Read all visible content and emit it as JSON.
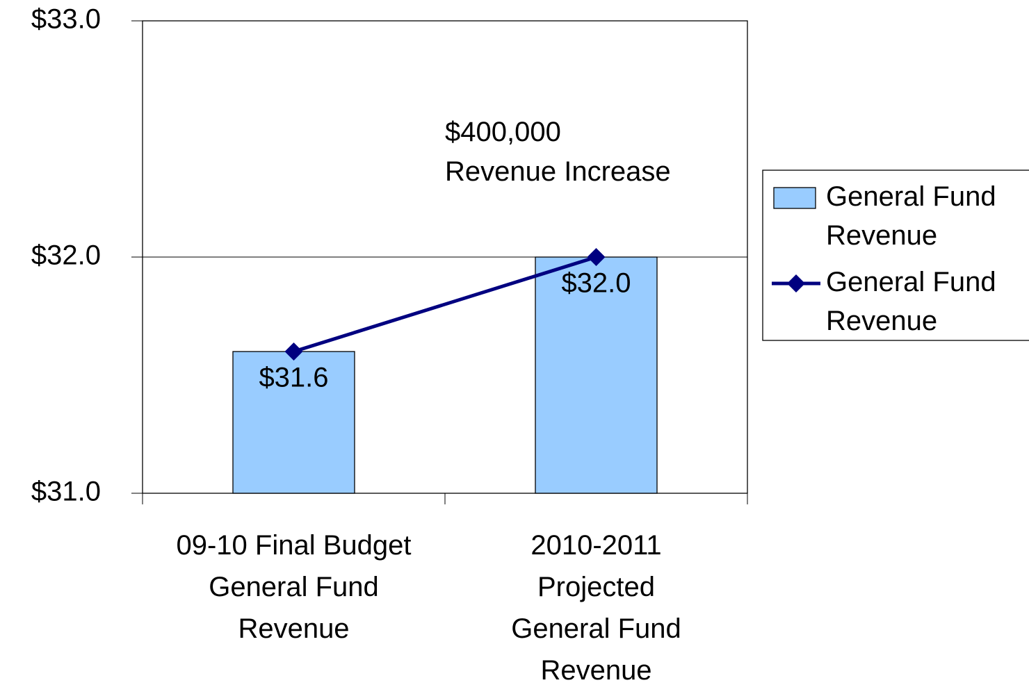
{
  "chart_data": {
    "type": "bar",
    "categories": [
      "09-10 Final Budget\nGeneral Fund\nRevenue",
      "2010-2011\nProjected\nGeneral Fund\nRevenue"
    ],
    "series": [
      {
        "name": "General Fund Revenue",
        "type": "bar",
        "color": "#99ccff",
        "values": [
          31.6,
          32.0
        ],
        "value_labels": [
          "$31.6",
          "$32.0"
        ]
      },
      {
        "name": "General Fund Revenue",
        "type": "line",
        "color": "#000080",
        "values": [
          31.6,
          32.0
        ]
      }
    ],
    "ylim": [
      31,
      33
    ],
    "yticks": [
      {
        "value": 31,
        "label": "$31.0"
      },
      {
        "value": 32,
        "label": "$32.0"
      },
      {
        "value": 33,
        "label": "$33.0"
      }
    ],
    "grid": true,
    "annotation": "$400,000\nRevenue Increase",
    "legend": "right"
  }
}
